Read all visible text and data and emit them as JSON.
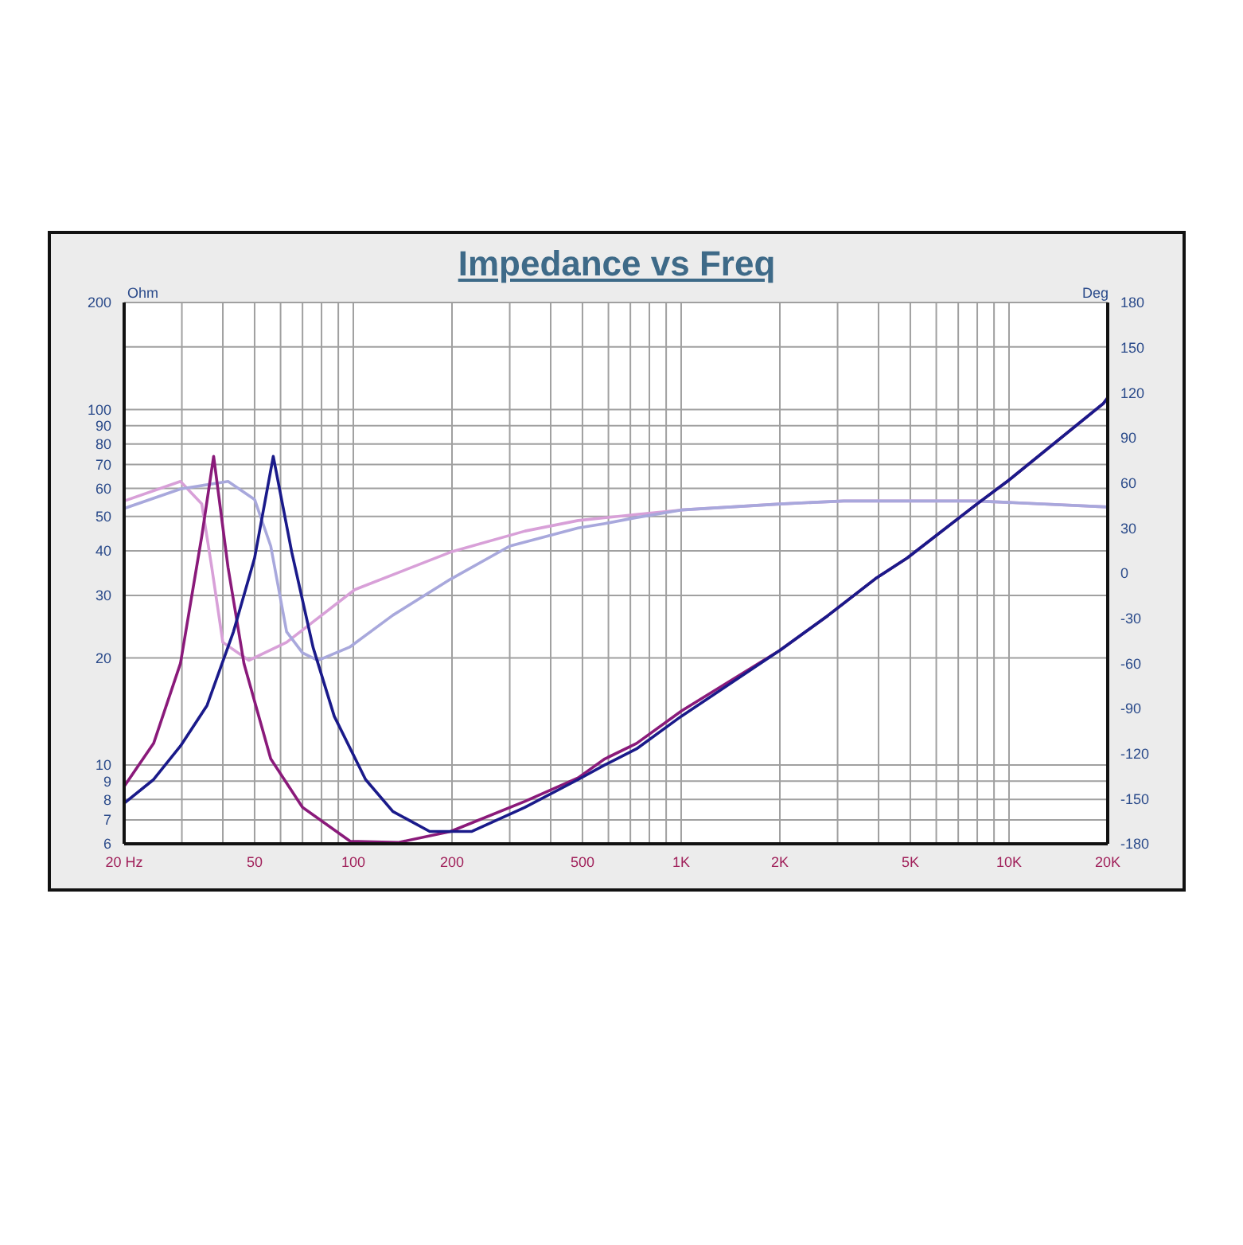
{
  "chart_data": {
    "type": "line",
    "title": "Impedance vs Freq",
    "ylabel": "Ohm",
    "y2label": "Deg",
    "log": "xy",
    "grid": true,
    "marker": "none",
    "line_style": "solid",
    "xlim": [
      20,
      20000
    ],
    "xticks": [
      {
        "value": 20,
        "label": "20  Hz"
      },
      {
        "value": 30,
        "label": null
      },
      {
        "value": 40,
        "label": null
      },
      50,
      {
        "value": 60,
        "label": null
      },
      {
        "value": 70,
        "label": null
      },
      {
        "value": 80,
        "label": null
      },
      {
        "value": 90,
        "label": null
      },
      100,
      200,
      {
        "value": 300,
        "label": null
      },
      {
        "value": 400,
        "label": null
      },
      500,
      {
        "value": 600,
        "label": null
      },
      {
        "value": 700,
        "label": null
      },
      {
        "value": 800,
        "label": null
      },
      {
        "value": 900,
        "label": null
      },
      {
        "value": 1000,
        "label": "1K"
      },
      {
        "value": 2000,
        "label": "2K"
      },
      {
        "value": 3000,
        "label": null
      },
      {
        "value": 4000,
        "label": null
      },
      {
        "value": 5000,
        "label": "5K"
      },
      {
        "value": 6000,
        "label": null
      },
      {
        "value": 7000,
        "label": null
      },
      {
        "value": 8000,
        "label": null
      },
      {
        "value": 9000,
        "label": null
      },
      {
        "value": 10000,
        "label": "10K"
      },
      {
        "value": 20000,
        "label": "20K"
      }
    ],
    "ylim": [
      6,
      200
    ],
    "yticks": [
      6,
      7,
      8,
      9,
      10,
      20,
      30,
      40,
      50,
      60,
      70,
      80,
      90,
      100,
      {
        "value": 150,
        "label": null
      },
      200
    ],
    "y2lim": [
      -180,
      180
    ],
    "y2ticks": [
      -180,
      -150,
      -120,
      -90,
      -60,
      -30,
      0,
      30,
      60,
      90,
      120,
      150,
      180
    ],
    "series": [
      {
        "color": "#d8a0d8",
        "axis": "y2",
        "x": [
          20,
          29.7,
          34.5,
          37,
          40,
          48,
          62.6,
          101,
          198,
          334,
          485,
          731,
          1000,
          2000,
          3130,
          7940,
          20000
        ],
        "values": [
          48,
          61,
          46,
          4,
          -46,
          -58,
          -46,
          -11,
          14,
          28,
          35,
          39,
          42,
          46,
          48,
          48,
          44
        ]
      },
      {
        "color": "#a8a8dc",
        "axis": "y2",
        "x": [
          20,
          29.7,
          41.5,
          50,
          56,
          62.6,
          70,
          78,
          97.8,
          132,
          198,
          300,
          485,
          585,
          731,
          1000,
          2000,
          3130,
          7940,
          20000
        ],
        "values": [
          43,
          56,
          61,
          49,
          18,
          -39,
          -53,
          -58,
          -49,
          -28,
          -4,
          18,
          30,
          33,
          37,
          42,
          46,
          48,
          48,
          44
        ]
      },
      {
        "color": "#8a1a7a",
        "x": [
          20,
          24.6,
          29.7,
          34.5,
          37.5,
          41.5,
          46.4,
          56,
          70,
          97.8,
          136.8,
          198,
          334,
          485,
          585,
          731,
          1003,
          2000,
          2800,
          3910,
          4890,
          7940,
          9930,
          19400,
          20000
        ],
        "values": [
          8.7,
          11.5,
          19.3,
          44,
          73.8,
          35.9,
          19.3,
          10.4,
          7.6,
          6.1,
          6.05,
          6.5,
          7.9,
          9.2,
          10.4,
          11.5,
          14.2,
          21,
          26.3,
          33.4,
          38.2,
          54,
          63,
          104,
          108
        ]
      },
      {
        "color": "#1a1a8a",
        "x": [
          20,
          24.6,
          29.7,
          35.8,
          43.1,
          50,
          57,
          64.9,
          75.4,
          87.5,
          109,
          132,
          171,
          230,
          334,
          485,
          585,
          731,
          1000,
          2000,
          2800,
          3910,
          4890,
          7940,
          9930,
          19400,
          20000
        ],
        "values": [
          7.8,
          9.1,
          11.3,
          14.7,
          23.7,
          38.2,
          73.8,
          39.7,
          21.4,
          13.7,
          9.1,
          7.4,
          6.5,
          6.5,
          7.6,
          9.1,
          10,
          11.1,
          13.7,
          21,
          26.3,
          33.4,
          38.2,
          54,
          63,
          104,
          108
        ]
      }
    ]
  }
}
